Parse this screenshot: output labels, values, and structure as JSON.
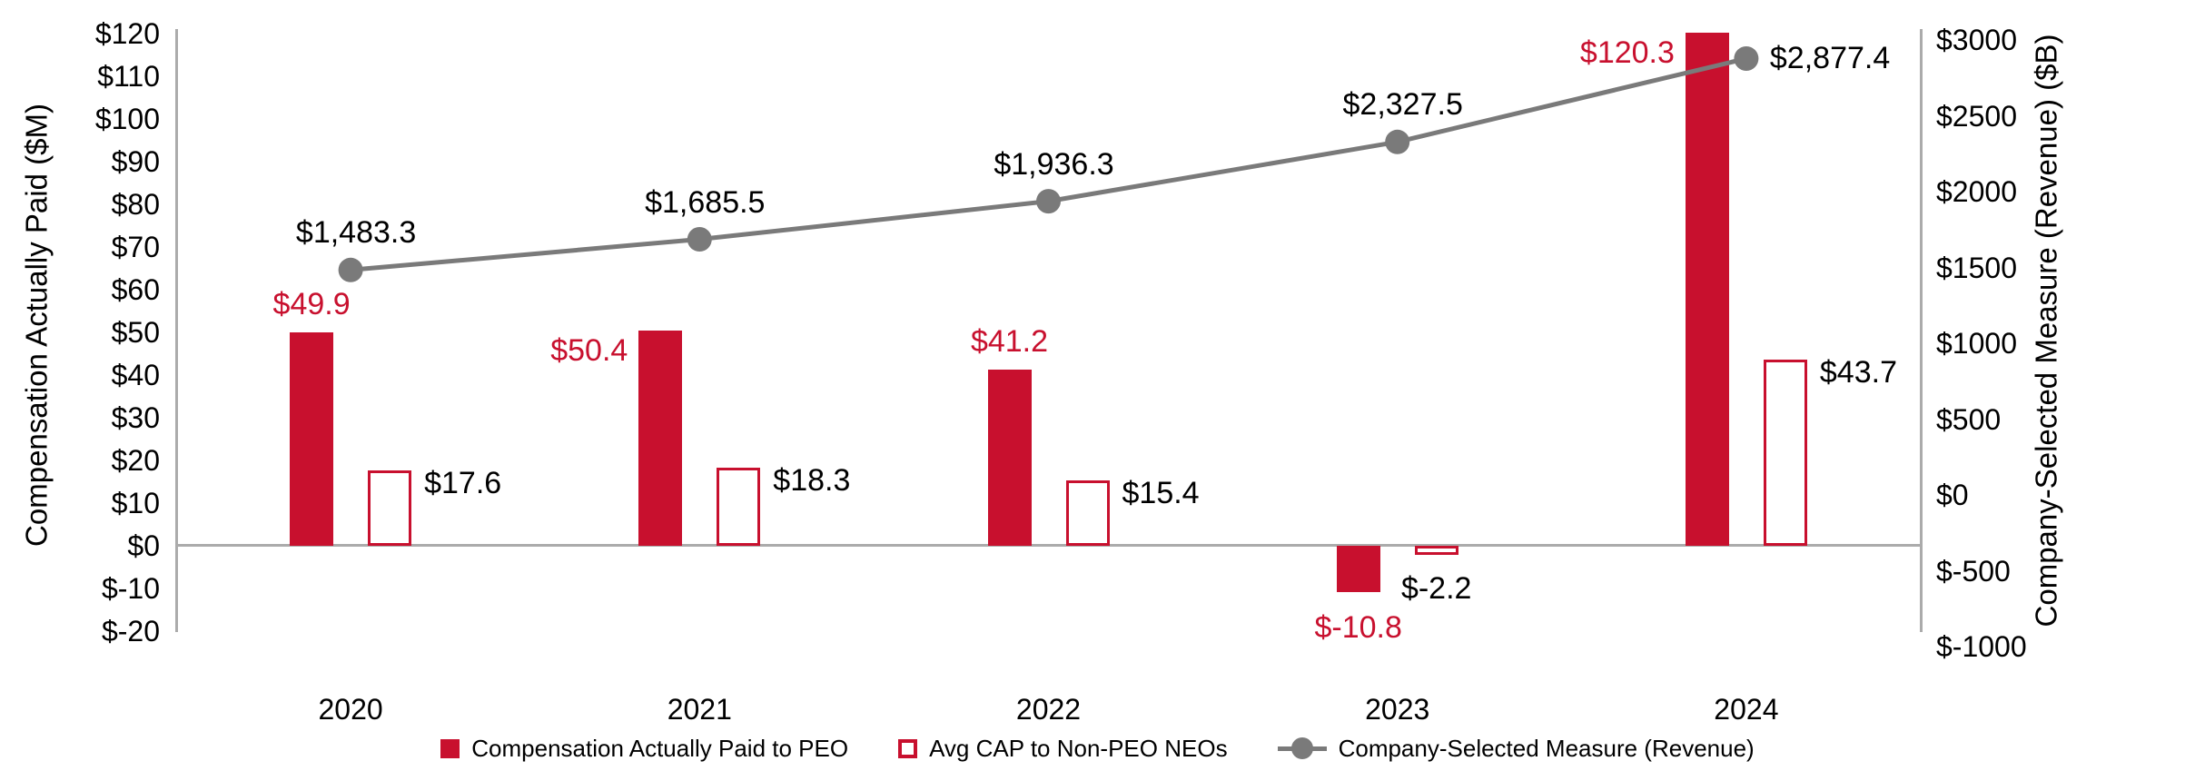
{
  "colors": {
    "bar_red": "#C8102E",
    "line_gray": "#7A7A7A",
    "axis_gray": "#ABABAB",
    "text_black": "#000000",
    "outline_fill": "#FFFFFF"
  },
  "chart_data": {
    "type": "combo-bar-line",
    "categories": [
      "2020",
      "2021",
      "2022",
      "2023",
      "2024"
    ],
    "series": [
      {
        "name": "Compensation Actually Paid to PEO",
        "kind": "bar",
        "style": "filled",
        "axis": "left",
        "values": [
          49.9,
          50.4,
          41.2,
          -10.8,
          120.3
        ],
        "labels": [
          "$49.9",
          "$50.4",
          "$41.2",
          "$-10.8",
          "$120.3"
        ],
        "label_pos": [
          "above",
          "left",
          "above",
          "below",
          "left"
        ],
        "label_color": "red"
      },
      {
        "name": "Avg CAP to Non-PEO NEOs",
        "kind": "bar",
        "style": "outline",
        "axis": "left",
        "values": [
          17.6,
          18.3,
          15.4,
          -2.2,
          43.7
        ],
        "labels": [
          "$17.6",
          "$18.3",
          "$15.4",
          "$-2.2",
          "$43.7"
        ],
        "label_pos": [
          "right",
          "right",
          "right",
          "below",
          "right"
        ],
        "label_color": "black"
      },
      {
        "name": "Company-Selected Measure (Revenue)",
        "kind": "line",
        "style": "line-marker",
        "axis": "right",
        "values": [
          1483.3,
          1685.5,
          1936.3,
          2327.5,
          2877.4
        ],
        "labels": [
          "$1,483.3",
          "$1,685.5",
          "$1,936.3",
          "$2,327.5",
          "$2,877.4"
        ],
        "label_pos": [
          "above",
          "above",
          "above",
          "above",
          "right"
        ],
        "label_color": "black"
      }
    ],
    "left_axis": {
      "title": "Compensation Actually Paid ($M)",
      "tick_labels": [
        "$120",
        "$110",
        "$100",
        "$90",
        "$80",
        "$70",
        "$60",
        "$50",
        "$40",
        "$30",
        "$20",
        "$10",
        "$0",
        "$-10",
        "$-20"
      ],
      "tick_values": [
        120,
        110,
        100,
        90,
        80,
        70,
        60,
        50,
        40,
        30,
        20,
        10,
        0,
        -10,
        -20
      ],
      "min": -20,
      "max": 120
    },
    "right_axis": {
      "title": "Company-Selected Measure (Revenue) ($B)",
      "tick_labels": [
        "$3000",
        "$2500",
        "$2000",
        "$1500",
        "$1000",
        "$500",
        "$0",
        "$-500",
        "$-1000"
      ],
      "tick_values": [
        3000,
        2500,
        2000,
        1500,
        1000,
        500,
        0,
        -500,
        -1000
      ],
      "min": -1000,
      "max": 3000
    },
    "grid": "off",
    "legend_position": "bottom"
  }
}
